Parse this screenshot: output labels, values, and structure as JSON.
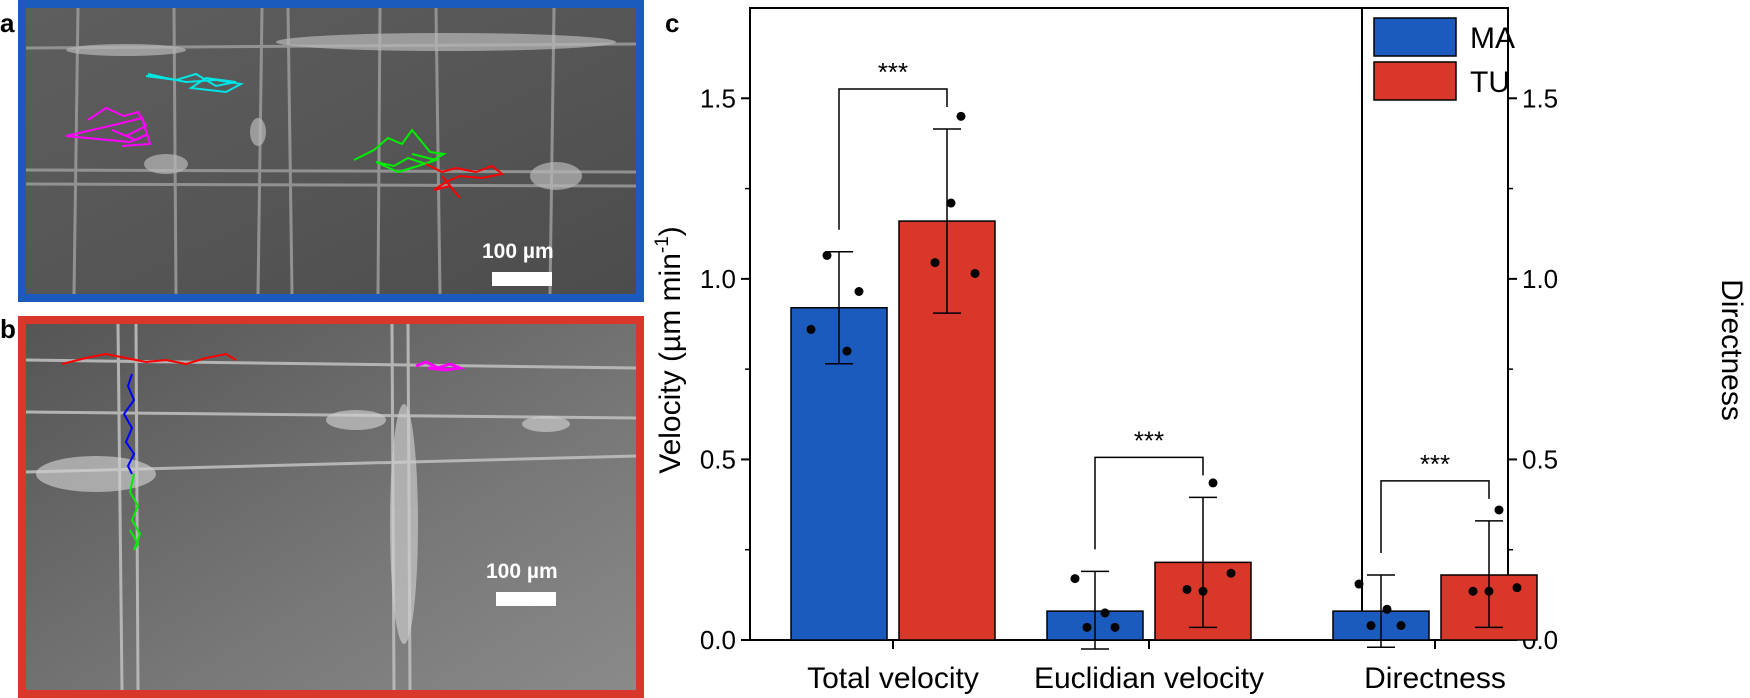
{
  "panels": {
    "a": {
      "letter": "a",
      "scale_label": "100 µm",
      "border_color": "#1b5bbd"
    },
    "b": {
      "letter": "b",
      "scale_label": "100 µm",
      "border_color": "#d9372a"
    },
    "c": {
      "letter": "c"
    }
  },
  "track_colors": {
    "a": [
      "#00e5e5",
      "#ff00ff",
      "#00ee00",
      "#ff0000"
    ],
    "b": [
      "#ff0000",
      "#ff00ff",
      "#0000ff",
      "#00ee00"
    ]
  },
  "chart_data": {
    "type": "bar",
    "categories": [
      "Total velocity",
      "Euclidian velocity",
      "Directness"
    ],
    "series": [
      {
        "name": "MA",
        "color": "#1b5bbd",
        "values": [
          0.92,
          0.08,
          0.08
        ],
        "error_low": [
          0.765,
          -0.025,
          -0.02
        ],
        "error_high": [
          1.075,
          0.19,
          0.18
        ],
        "points": [
          [
            0.86,
            1.065,
            0.965,
            0.8
          ],
          [
            0.17,
            0.035,
            0.075,
            0.035
          ],
          [
            0.155,
            0.04,
            0.085,
            0.04
          ]
        ]
      },
      {
        "name": "TU",
        "color": "#d9372a",
        "values": [
          1.16,
          0.215,
          0.18
        ],
        "error_low": [
          0.905,
          0.035,
          0.035
        ],
        "error_high": [
          1.415,
          0.395,
          0.33
        ],
        "points": [
          [
            1.045,
            1.21,
            1.45,
            1.015
          ],
          [
            0.14,
            0.135,
            0.435,
            0.185
          ],
          [
            0.135,
            0.135,
            0.36,
            0.145
          ]
        ]
      }
    ],
    "significance": [
      "***",
      "***",
      "***"
    ],
    "ylabel": "Velocity (µm min",
    "ylabel_sup": "-1",
    "ylabel_close": ")",
    "y2label": "Directness",
    "ylim": [
      0,
      1.75
    ],
    "yticks": [
      "0.0",
      "0.5",
      "1.0",
      "1.5"
    ],
    "y2ticks": [
      "0.0",
      "0.5",
      "1.0",
      "1.5"
    ],
    "legend": {
      "position": "top-right",
      "entries": [
        "MA",
        "TU"
      ]
    },
    "grid": false
  }
}
